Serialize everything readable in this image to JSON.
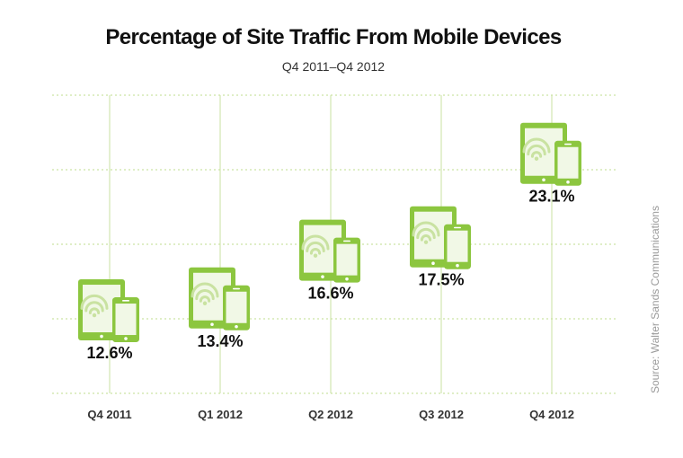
{
  "chart_data": {
    "type": "bar",
    "title": "Percentage of Site Traffic From Mobile Devices",
    "subtitle": "Q4 2011–Q4 2012",
    "categories": [
      "Q4 2011",
      "Q1 2012",
      "Q2 2012",
      "Q3 2012",
      "Q4 2012"
    ],
    "values": [
      12.6,
      13.4,
      16.6,
      17.5,
      23.1
    ],
    "value_labels": [
      "12.6%",
      "13.4%",
      "16.6%",
      "17.5%",
      "23.1%"
    ],
    "unit": "%",
    "marker": "tablet-and-phone-icon",
    "grid": true,
    "ylim": [
      7,
      27
    ],
    "source": "Source: Walter Sands Communications",
    "colors": {
      "accent": "#8cc63f",
      "accent_light": "#c9e2a1",
      "screen": "#f1f8e6",
      "grid": "#bfdc8e",
      "text": "#111111"
    }
  }
}
